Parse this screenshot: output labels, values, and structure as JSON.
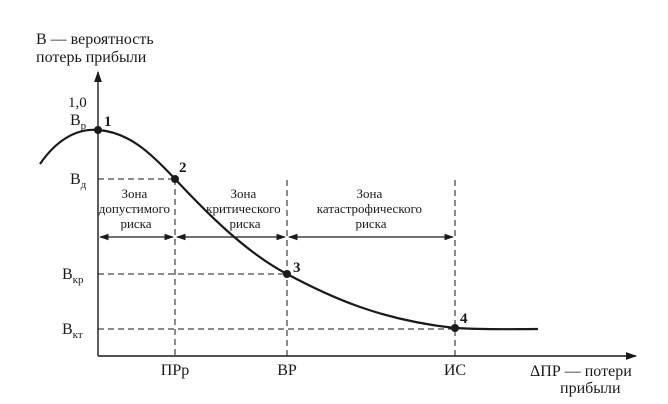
{
  "chart_data": {
    "type": "line",
    "ylabel_line1": "В — вероятность",
    "ylabel_line2": "потерь прибыли",
    "xlabel_line1": "ΔПР — потери",
    "xlabel_line2": "прибыли",
    "y_one_label": "1,0",
    "y_ticks": [
      {
        "base": "В",
        "sub": "р"
      },
      {
        "base": "В",
        "sub": "д"
      },
      {
        "base": "В",
        "sub": "кр"
      },
      {
        "base": "В",
        "sub": "кт"
      }
    ],
    "x_ticks": [
      "ПРр",
      "ВР",
      "ИС"
    ],
    "points": [
      {
        "label": "1"
      },
      {
        "label": "2"
      },
      {
        "label": "3"
      },
      {
        "label": "4"
      }
    ],
    "zones": [
      {
        "lines": [
          "Зона",
          "допустимого",
          "риска"
        ]
      },
      {
        "lines": [
          "Зона",
          "критического",
          "риска"
        ]
      },
      {
        "lines": [
          "Зона",
          "катастрофического",
          "риска"
        ]
      }
    ]
  }
}
